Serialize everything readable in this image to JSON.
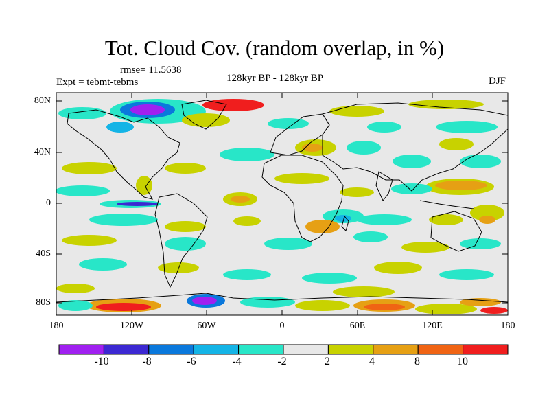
{
  "title": "Tot. Cloud Cov. (random overlap, in %)",
  "rmse": "rmse= 11.5638",
  "experiment": "Expt = tebmt-tebms",
  "period": "128kyr BP - 128kyr BP",
  "season": "DJF",
  "lat_ticks": [
    "80N",
    "40N",
    "0",
    "40S",
    "80S"
  ],
  "lon_ticks": [
    "180",
    "120W",
    "60W",
    "0",
    "60E",
    "120E",
    "180"
  ],
  "colorbar": {
    "labels": [
      "-10",
      "-8",
      "-6",
      "-4",
      "-2",
      "2",
      "4",
      "8",
      "10"
    ],
    "colors": [
      "#a020f0",
      "#3c28d2",
      "#0a78dc",
      "#14b4e6",
      "#28e6c8",
      "#e8e8e8",
      "#c8d200",
      "#e6a014",
      "#f06414",
      "#f01e1e"
    ]
  }
}
